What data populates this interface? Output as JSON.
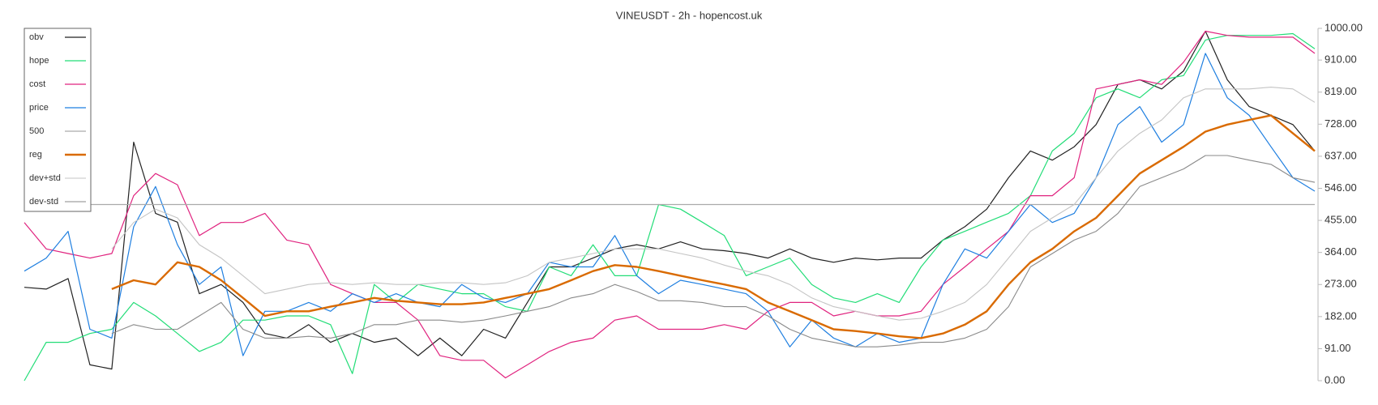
{
  "chart_data": {
    "type": "line",
    "title": "VINEUSDT - 2h - hopencost.uk",
    "ylim": [
      0,
      1000
    ],
    "yticks": [
      {
        "value": 0,
        "label": "0.00"
      },
      {
        "value": 91,
        "label": "91.00"
      },
      {
        "value": 182,
        "label": "182.00"
      },
      {
        "value": 273,
        "label": "273.00"
      },
      {
        "value": 364,
        "label": "364.00"
      },
      {
        "value": 455,
        "label": "455.00"
      },
      {
        "value": 546,
        "label": "546.00"
      },
      {
        "value": 637,
        "label": "637.00"
      },
      {
        "value": 728,
        "label": "728.00"
      },
      {
        "value": 819,
        "label": "819.00"
      },
      {
        "value": 910,
        "label": "910.00"
      },
      {
        "value": 1000,
        "label": "1000.00"
      }
    ],
    "legend": "upper left",
    "series": [
      {
        "name": "obv",
        "color": "#222222",
        "width": 1.2,
        "values": [
          265,
          260,
          290,
          45,
          33,
          677,
          475,
          450,
          247,
          273,
          222,
          134,
          121,
          159,
          109,
          134,
          109,
          121,
          71,
          121,
          71,
          146,
          121,
          222,
          323,
          323,
          348,
          374,
          386,
          374,
          394,
          374,
          369,
          361,
          348,
          374,
          348,
          336,
          348,
          343,
          348,
          348,
          399,
          437,
          487,
          576,
          652,
          626,
          664,
          727,
          841,
          854,
          828,
          879,
          992,
          854,
          778,
          753,
          727,
          652
        ]
      },
      {
        "name": "hope",
        "color": "#22dd77",
        "width": 1.2,
        "values": [
          0,
          109,
          109,
          134,
          146,
          222,
          184,
          134,
          83,
          109,
          172,
          172,
          184,
          184,
          159,
          20,
          273,
          222,
          273,
          260,
          247,
          247,
          210,
          197,
          323,
          298,
          386,
          298,
          298,
          500,
          487,
          450,
          412,
          298,
          323,
          348,
          273,
          235,
          222,
          247,
          222,
          323,
          399,
          424,
          450,
          475,
          525,
          652,
          702,
          803,
          828,
          803,
          854,
          866,
          967,
          980,
          980,
          980,
          985,
          942
        ]
      },
      {
        "name": "cost",
        "color": "#e0237f",
        "width": 1.2,
        "values": [
          449,
          374,
          361,
          348,
          361,
          525,
          588,
          556,
          412,
          449,
          449,
          475,
          399,
          386,
          273,
          247,
          222,
          222,
          172,
          71,
          58,
          58,
          8,
          45,
          83,
          109,
          121,
          172,
          184,
          146,
          146,
          146,
          159,
          146,
          197,
          222,
          222,
          184,
          197,
          184,
          184,
          197,
          273,
          323,
          374,
          424,
          525,
          525,
          576,
          828,
          841,
          854,
          841,
          904,
          992,
          980,
          975,
          975,
          975,
          929
        ]
      },
      {
        "name": "price",
        "color": "#1f7fe0",
        "width": 1.2,
        "values": [
          311,
          348,
          424,
          146,
          121,
          437,
          551,
          386,
          273,
          323,
          71,
          197,
          197,
          222,
          197,
          247,
          222,
          247,
          222,
          210,
          273,
          235,
          222,
          247,
          336,
          323,
          323,
          412,
          298,
          247,
          285,
          273,
          260,
          247,
          197,
          96,
          172,
          121,
          96,
          134,
          109,
          121,
          273,
          374,
          348,
          424,
          500,
          449,
          475,
          576,
          727,
          778,
          677,
          727,
          929,
          803,
          753,
          664,
          576,
          538
        ]
      },
      {
        "name": "500",
        "color": "#aaaaaa",
        "width": 1.2,
        "values": [
          500,
          500,
          500,
          500,
          500,
          500,
          500,
          500,
          500,
          500,
          500,
          500,
          500,
          500,
          500,
          500,
          500,
          500,
          500,
          500,
          500,
          500,
          500,
          500,
          500,
          500,
          500,
          500,
          500,
          500,
          500,
          500,
          500,
          500,
          500,
          500,
          500,
          500,
          500,
          500,
          500,
          500,
          500,
          500,
          500,
          500,
          500,
          500,
          500,
          500,
          500,
          500,
          500,
          500,
          500,
          500,
          500,
          500,
          500,
          500
        ]
      },
      {
        "name": "reg",
        "color": "#d96a00",
        "width": 2.4,
        "values": [
          null,
          null,
          null,
          null,
          260,
          285,
          273,
          336,
          323,
          285,
          235,
          184,
          197,
          197,
          210,
          222,
          235,
          227,
          222,
          217,
          217,
          222,
          235,
          247,
          260,
          285,
          311,
          328,
          323,
          311,
          298,
          285,
          273,
          260,
          222,
          197,
          172,
          146,
          141,
          134,
          126,
          121,
          134,
          159,
          197,
          273,
          336,
          374,
          424,
          462,
          525,
          588,
          626,
          664,
          707,
          727,
          740,
          753,
          702,
          652
        ]
      },
      {
        "name": "dev+std",
        "color": "#c4c4c4",
        "width": 1.1,
        "values": [
          null,
          null,
          null,
          null,
          374,
          449,
          487,
          462,
          386,
          348,
          298,
          247,
          260,
          273,
          278,
          273,
          278,
          273,
          273,
          278,
          278,
          273,
          278,
          298,
          336,
          348,
          361,
          374,
          374,
          374,
          361,
          348,
          328,
          311,
          298,
          273,
          235,
          210,
          197,
          184,
          172,
          177,
          197,
          222,
          273,
          348,
          424,
          462,
          500,
          576,
          652,
          702,
          740,
          803,
          828,
          828,
          828,
          833,
          828,
          790
        ]
      },
      {
        "name": "dev-std",
        "color": "#8a8a8a",
        "width": 1.1,
        "values": [
          null,
          null,
          null,
          null,
          134,
          159,
          146,
          146,
          184,
          222,
          146,
          121,
          121,
          126,
          121,
          134,
          159,
          159,
          172,
          172,
          166,
          172,
          184,
          197,
          210,
          235,
          247,
          273,
          253,
          227,
          227,
          222,
          210,
          210,
          184,
          146,
          121,
          109,
          96,
          96,
          101,
          109,
          109,
          121,
          146,
          210,
          323,
          361,
          399,
          424,
          475,
          551,
          576,
          601,
          639,
          639,
          626,
          614,
          576,
          563
        ]
      }
    ]
  }
}
